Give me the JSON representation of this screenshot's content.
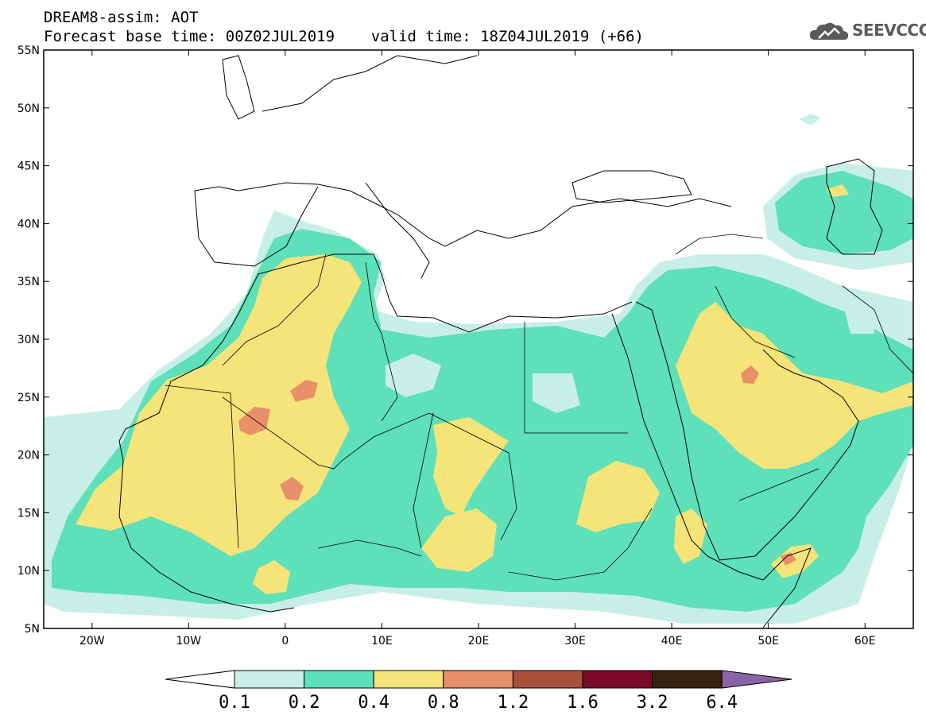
{
  "title": {
    "line1": "DREAM8-assim: AOT",
    "line2": "Forecast base time: 00Z02JUL2019    valid time: 18Z04JUL2019 (+66)"
  },
  "logo": {
    "text": "SEEVCCC",
    "icon": "cloud-icon"
  },
  "map": {
    "lon_min": -25,
    "lon_max": 65,
    "lat_min": 5,
    "lat_max": 55,
    "lat_ticks": [
      {
        "value": 55,
        "label": "55N"
      },
      {
        "value": 50,
        "label": "50N"
      },
      {
        "value": 45,
        "label": "45N"
      },
      {
        "value": 40,
        "label": "40N"
      },
      {
        "value": 35,
        "label": "35N"
      },
      {
        "value": 30,
        "label": "30N"
      },
      {
        "value": 25,
        "label": "25N"
      },
      {
        "value": 20,
        "label": "20N"
      },
      {
        "value": 15,
        "label": "15N"
      },
      {
        "value": 10,
        "label": "10N"
      },
      {
        "value": 5,
        "label": "5N"
      }
    ],
    "lon_ticks": [
      {
        "value": -20,
        "label": "20W"
      },
      {
        "value": -10,
        "label": "10W"
      },
      {
        "value": 0,
        "label": "0"
      },
      {
        "value": 10,
        "label": "10E"
      },
      {
        "value": 20,
        "label": "20E"
      },
      {
        "value": 30,
        "label": "30E"
      },
      {
        "value": 40,
        "label": "40E"
      },
      {
        "value": 50,
        "label": "50E"
      },
      {
        "value": 60,
        "label": "60E"
      }
    ]
  },
  "colorbar": {
    "labels": [
      "0.1",
      "0.2",
      "0.4",
      "0.8",
      "1.2",
      "1.6",
      "3.2",
      "6.4"
    ],
    "under_color": "#ffffff",
    "colors": [
      "#c8efe7",
      "#5ee0b8",
      "#f4e47a",
      "#e8906a",
      "#a8503c",
      "#7a0a28",
      "#3a2210"
    ],
    "over_color": "#8c64a6"
  }
}
